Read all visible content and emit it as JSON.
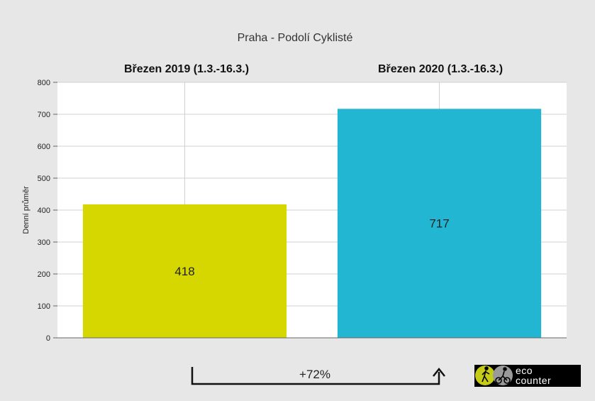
{
  "chart_data": {
    "type": "bar",
    "title": "Praha - Podolí Cyklisté",
    "ylabel": "Denní průměr",
    "categories": [
      "Březen 2019 (1.3.-16.3.)",
      "Březen 2020 (1.3.-16.3.)"
    ],
    "values": [
      418,
      717
    ],
    "colors": [
      "#d6d700",
      "#22b6d3"
    ],
    "ylim": [
      0,
      800
    ],
    "yticks": [
      0,
      100,
      200,
      300,
      400,
      500,
      600,
      700,
      800
    ],
    "grid": true,
    "change_label": "+72%"
  },
  "logo": {
    "line1": "eco",
    "line2": "counter",
    "background": "#000000"
  }
}
